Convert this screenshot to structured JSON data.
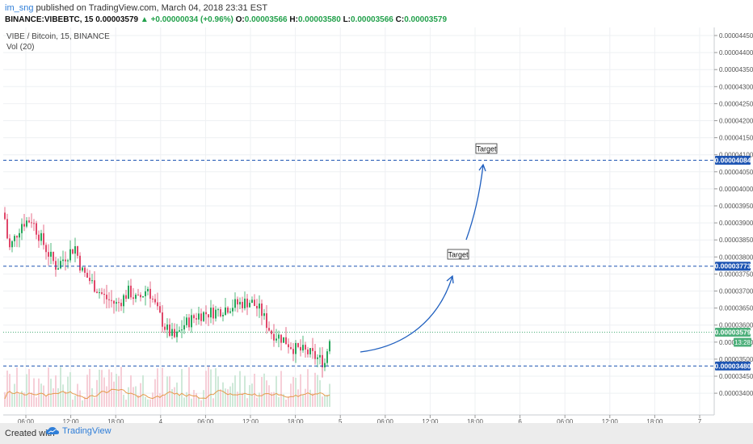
{
  "header": {
    "username": "im_sng",
    "published_text": " published on TradingView.com, March 04, 2018 23:31 EST",
    "symbol_line": "BINANCE:VIBEBTC, 15",
    "last": "0.00003579",
    "change": "+0.00000034 (+0.96%)",
    "o_label": "O:",
    "o_value": "0.00003566",
    "h_label": "H:",
    "h_value": "0.00003580",
    "l_label": "L:",
    "l_value": "0.00003566",
    "c_label": "C:",
    "c_value": "0.00003579"
  },
  "chart": {
    "title": "VIBE / Bitcoin, 15, BINANCE",
    "vol_label": "Vol (20)",
    "price_ticks": [
      "0.00004450",
      "0.00004400",
      "0.00004350",
      "0.00004300",
      "0.00004250",
      "0.00004200",
      "0.00004150",
      "0.00004100",
      "0.00004050",
      "0.00004000",
      "0.00003950",
      "0.00003900",
      "0.00003850",
      "0.00003800",
      "0.00003750",
      "0.00003700",
      "0.00003650",
      "0.00003600",
      "0.00003550",
      "0.00003500",
      "0.00003450",
      "0.00003400"
    ],
    "time_ticks": [
      "06:00",
      "12:00",
      "18:00",
      "4",
      "06:00",
      "12:00",
      "18:00",
      "5",
      "06:00",
      "12:00",
      "18:00",
      "6",
      "06:00",
      "12:00",
      "18:00",
      "7"
    ],
    "levels": [
      {
        "price": "0.00004084",
        "color": "#1e55b3"
      },
      {
        "price": "0.00003773",
        "color": "#1e55b3"
      },
      {
        "price": "0.00003480",
        "color": "#1e55b3"
      }
    ],
    "last_price_label": "0.00003579",
    "last_price_color": "#4caf7a",
    "countdown": "13:28",
    "annotations": [
      {
        "text": "Target"
      },
      {
        "text": "Target"
      }
    ],
    "colors": {
      "up": "#26a65b",
      "down": "#e0476a",
      "vol_ma": "#e59a4c",
      "arrow": "#1f5fbf",
      "grid": "#eef0f3"
    }
  },
  "footer": {
    "created_with": "Created with",
    "brand": "TradingView"
  }
}
